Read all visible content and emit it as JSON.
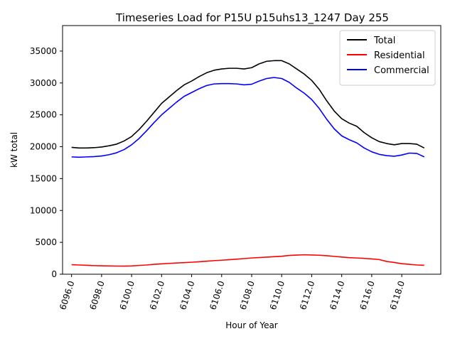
{
  "chart_data": {
    "type": "line",
    "title": "Timeseries Load for P15U p15uhs13_1247  Day 255",
    "xlabel": "Hour of Year",
    "ylabel": "kW total",
    "xlim": [
      6095.4,
      6120.6
    ],
    "ylim": [
      0,
      39000
    ],
    "xticks": [
      6096,
      6098,
      6100,
      6102,
      6104,
      6106,
      6108,
      6110,
      6112,
      6114,
      6116,
      6118
    ],
    "xtick_labels": [
      "6096.0",
      "6098.0",
      "6100.0",
      "6102.0",
      "6104.0",
      "6106.0",
      "6108.0",
      "6110.0",
      "6112.0",
      "6114.0",
      "6116.0",
      "6118.0"
    ],
    "yticks": [
      0,
      5000,
      10000,
      15000,
      20000,
      25000,
      30000,
      35000
    ],
    "ytick_labels": [
      "0",
      "5000",
      "10000",
      "15000",
      "20000",
      "25000",
      "30000",
      "35000"
    ],
    "legend_position": "top-right",
    "x": [
      6096,
      6096.5,
      6097,
      6097.5,
      6098,
      6098.5,
      6099,
      6099.5,
      6100,
      6100.5,
      6101,
      6101.5,
      6102,
      6102.5,
      6103,
      6103.5,
      6104,
      6104.5,
      6105,
      6105.5,
      6106,
      6106.5,
      6107,
      6107.5,
      6108,
      6108.5,
      6109,
      6109.5,
      6110,
      6110.5,
      6111,
      6111.5,
      6112,
      6112.5,
      6113,
      6113.5,
      6114,
      6114.5,
      6115,
      6115.5,
      6116,
      6116.5,
      6117,
      6117.5,
      6118,
      6118.5,
      6119,
      6119.5
    ],
    "series": [
      {
        "name": "Total",
        "color": "#000000",
        "values": [
          19900,
          19800,
          19800,
          19850,
          19950,
          20150,
          20400,
          20900,
          21600,
          22700,
          24000,
          25400,
          26800,
          27800,
          28800,
          29700,
          30300,
          31000,
          31600,
          32000,
          32200,
          32300,
          32300,
          32200,
          32400,
          33000,
          33400,
          33500,
          33500,
          33000,
          32200,
          31400,
          30400,
          29000,
          27200,
          25600,
          24400,
          23700,
          23200,
          22200,
          21400,
          20800,
          20500,
          20300,
          20500,
          20500,
          20400,
          19800
        ]
      },
      {
        "name": "Residential",
        "color": "#ff0000",
        "values": [
          1500,
          1450,
          1400,
          1350,
          1320,
          1300,
          1280,
          1270,
          1300,
          1380,
          1450,
          1550,
          1620,
          1700,
          1760,
          1820,
          1880,
          1960,
          2040,
          2130,
          2200,
          2280,
          2360,
          2450,
          2550,
          2620,
          2680,
          2750,
          2820,
          2950,
          3000,
          3050,
          3020,
          2980,
          2900,
          2800,
          2700,
          2600,
          2550,
          2480,
          2400,
          2300,
          2000,
          1850,
          1650,
          1550,
          1450,
          1400
        ]
      },
      {
        "name": "Commercial",
        "color": "#0000ff",
        "values": [
          18400,
          18350,
          18400,
          18450,
          18550,
          18750,
          19050,
          19550,
          20300,
          21300,
          22500,
          23800,
          25000,
          26000,
          27000,
          27900,
          28500,
          29100,
          29600,
          29850,
          29900,
          29900,
          29850,
          29700,
          29800,
          30300,
          30700,
          30850,
          30700,
          30100,
          29200,
          28400,
          27400,
          26000,
          24300,
          22800,
          21700,
          21100,
          20600,
          19800,
          19200,
          18800,
          18600,
          18500,
          18700,
          19000,
          18950,
          18400
        ]
      }
    ]
  }
}
